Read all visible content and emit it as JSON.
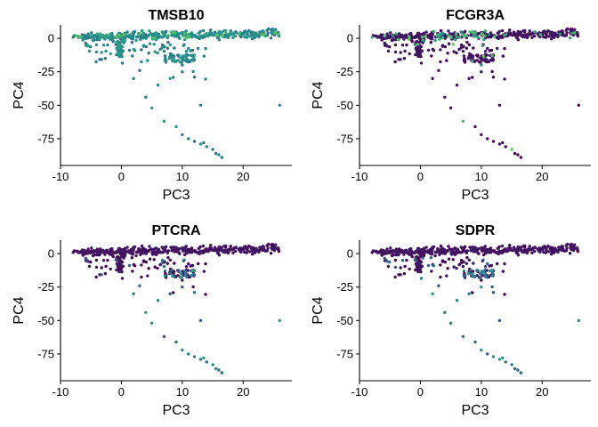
{
  "chart_data": [
    {
      "type": "scatter",
      "title": "TMSB10",
      "xlabel": "PC3",
      "ylabel": "PC4",
      "xlim": [
        -10,
        28
      ],
      "ylim": [
        -95,
        10
      ],
      "xticks": [
        -10,
        0,
        10,
        20
      ],
      "xtick_labels": [
        "-10",
        "0",
        "10",
        "20"
      ],
      "yticks": [
        0,
        -25,
        -50,
        -75
      ],
      "ytick_labels": [
        "0",
        "-25",
        "-50",
        "-75"
      ],
      "colormap": [
        "#440154",
        "#3b528b",
        "#21908c",
        "#5dc963",
        "#fde725"
      ],
      "expression": "high"
    },
    {
      "type": "scatter",
      "title": "FCGR3A",
      "xlabel": "PC3",
      "ylabel": "PC4",
      "xlim": [
        -10,
        28
      ],
      "ylim": [
        -95,
        10
      ],
      "xticks": [
        -10,
        0,
        10,
        20
      ],
      "xtick_labels": [
        "-10",
        "0",
        "10",
        "20"
      ],
      "yticks": [
        0,
        -25,
        -50,
        -75
      ],
      "ytick_labels": [
        "0",
        "-25",
        "-50",
        "-75"
      ],
      "colormap": [
        "#440154",
        "#3b528b",
        "#21908c",
        "#5dc963",
        "#fde725"
      ],
      "expression": "low-with-hotspots"
    },
    {
      "type": "scatter",
      "title": "PTCRA",
      "xlabel": "PC3",
      "ylabel": "PC4",
      "xlim": [
        -10,
        28
      ],
      "ylim": [
        -95,
        10
      ],
      "xticks": [
        -10,
        0,
        10,
        20
      ],
      "xtick_labels": [
        "-10",
        "0",
        "10",
        "20"
      ],
      "yticks": [
        0,
        -25,
        -50,
        -75
      ],
      "ytick_labels": [
        "0",
        "-25",
        "-50",
        "-75"
      ],
      "colormap": [
        "#440154",
        "#3b528b",
        "#21908c",
        "#5dc963",
        "#fde725"
      ],
      "expression": "low-tail-medium"
    },
    {
      "type": "scatter",
      "title": "SDPR",
      "xlabel": "PC3",
      "ylabel": "PC4",
      "xlim": [
        -10,
        28
      ],
      "ylim": [
        -95,
        10
      ],
      "xticks": [
        -10,
        0,
        10,
        20
      ],
      "xtick_labels": [
        "-10",
        "0",
        "10",
        "20"
      ],
      "yticks": [
        0,
        -25,
        -50,
        -75
      ],
      "ytick_labels": [
        "0",
        "-25",
        "-50",
        "-75"
      ],
      "colormap": [
        "#440154",
        "#3b528b",
        "#21908c",
        "#5dc963",
        "#fde725"
      ],
      "expression": "low-tail-medium"
    }
  ]
}
